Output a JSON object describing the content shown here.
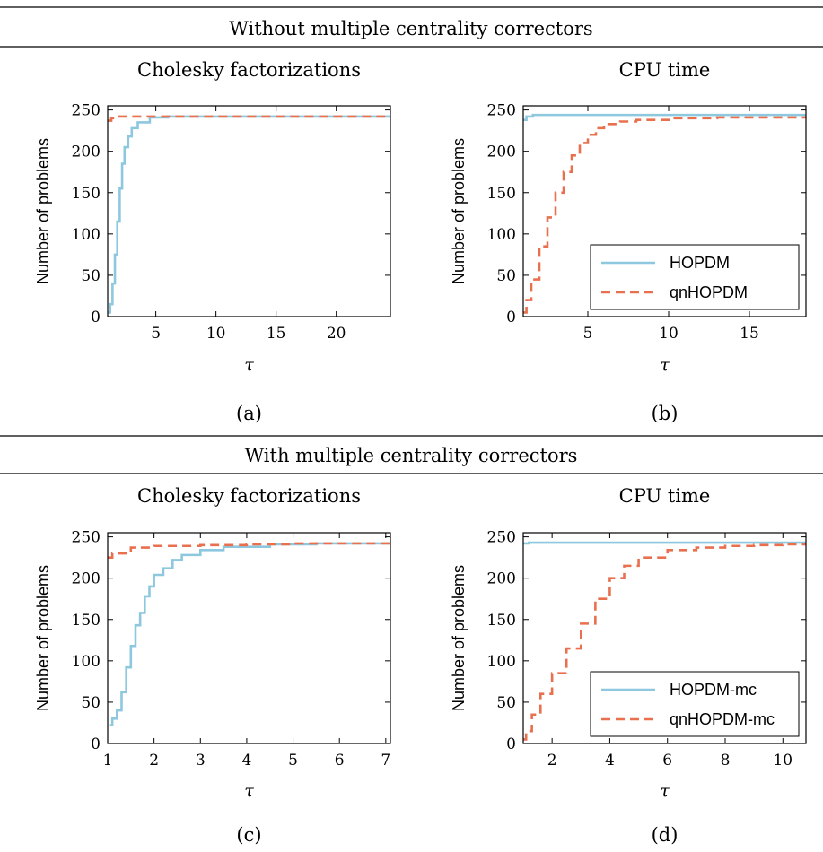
{
  "sections": [
    {
      "header": "Without multiple centrality correctors"
    },
    {
      "header": "With multiple centrality correctors"
    }
  ],
  "chart_data": [
    {
      "panel": "(a)",
      "type": "line",
      "title": "Cholesky factorizations",
      "xlabel": "τ",
      "ylabel": "Number of problems",
      "xlim": [
        1,
        24.5
      ],
      "ylim": [
        0,
        255
      ],
      "xticks": [
        5,
        10,
        15,
        20
      ],
      "xtick_labels": [
        "5",
        "10",
        "15",
        "20"
      ],
      "yticks": [
        0,
        50,
        100,
        150,
        200,
        250
      ],
      "ytick_labels": [
        "0",
        "50",
        "100",
        "150",
        "200",
        "250"
      ],
      "grid": false,
      "legend": null,
      "series": [
        {
          "name": "HOPDM",
          "color": "#8ec8df",
          "dash": "solid",
          "points": [
            [
              1,
              5
            ],
            [
              1.2,
              15
            ],
            [
              1.4,
              40
            ],
            [
              1.6,
              75
            ],
            [
              1.8,
              115
            ],
            [
              2.0,
              155
            ],
            [
              2.2,
              185
            ],
            [
              2.4,
              205
            ],
            [
              2.7,
              218
            ],
            [
              3.0,
              228
            ],
            [
              3.5,
              235
            ],
            [
              4.5,
              241
            ],
            [
              6,
              242
            ],
            [
              24.5,
              243
            ]
          ]
        },
        {
          "name": "qnHOPDM",
          "color": "#e8704f",
          "dash": "dashed",
          "points": [
            [
              1,
              237
            ],
            [
              1.3,
              240
            ],
            [
              1.8,
              242
            ],
            [
              24.5,
              242
            ]
          ]
        }
      ]
    },
    {
      "panel": "(b)",
      "type": "line",
      "title": "CPU time",
      "xlabel": "τ",
      "ylabel": "Number of problems",
      "xlim": [
        1,
        18.5
      ],
      "ylim": [
        0,
        255
      ],
      "xticks": [
        5,
        10,
        15
      ],
      "xtick_labels": [
        "5",
        "10",
        "15"
      ],
      "yticks": [
        0,
        50,
        100,
        150,
        200,
        250
      ],
      "ytick_labels": [
        "0",
        "50",
        "100",
        "150",
        "200",
        "250"
      ],
      "grid": false,
      "legend": "lower right",
      "series": [
        {
          "name": "HOPDM",
          "color": "#8ec8df",
          "dash": "solid",
          "points": [
            [
              1,
              238
            ],
            [
              1.2,
              242
            ],
            [
              1.6,
              244
            ],
            [
              18.5,
              244
            ]
          ]
        },
        {
          "name": "qnHOPDM",
          "color": "#e8704f",
          "dash": "dashed",
          "points": [
            [
              1,
              5
            ],
            [
              1.2,
              20
            ],
            [
              1.5,
              45
            ],
            [
              2,
              85
            ],
            [
              2.5,
              120
            ],
            [
              3,
              150
            ],
            [
              3.5,
              175
            ],
            [
              4,
              195
            ],
            [
              4.5,
              210
            ],
            [
              5,
              220
            ],
            [
              5.5,
              228
            ],
            [
              6,
              233
            ],
            [
              7,
              236
            ],
            [
              8,
              238
            ],
            [
              10,
              240
            ],
            [
              13,
              241
            ],
            [
              18.5,
              242
            ]
          ]
        }
      ]
    },
    {
      "panel": "(c)",
      "type": "line",
      "title": "Cholesky factorizations",
      "xlabel": "τ",
      "ylabel": "Number of problems",
      "xlim": [
        1,
        7.1
      ],
      "ylim": [
        0,
        255
      ],
      "xticks": [
        1,
        2,
        3,
        4,
        5,
        6,
        7
      ],
      "xtick_labels": [
        "1",
        "2",
        "3",
        "4",
        "5",
        "6",
        "7"
      ],
      "yticks": [
        0,
        50,
        100,
        150,
        200,
        250
      ],
      "ytick_labels": [
        "0",
        "50",
        "100",
        "150",
        "200",
        "250"
      ],
      "grid": false,
      "legend": null,
      "series": [
        {
          "name": "HOPDM",
          "color": "#8ec8df",
          "dash": "solid",
          "points": [
            [
              1.05,
              22
            ],
            [
              1.1,
              30
            ],
            [
              1.2,
              40
            ],
            [
              1.3,
              62
            ],
            [
              1.4,
              92
            ],
            [
              1.5,
              118
            ],
            [
              1.6,
              143
            ],
            [
              1.7,
              158
            ],
            [
              1.8,
              178
            ],
            [
              1.9,
              190
            ],
            [
              2.0,
              204
            ],
            [
              2.2,
              212
            ],
            [
              2.4,
              222
            ],
            [
              2.6,
              228
            ],
            [
              3.0,
              234
            ],
            [
              3.5,
              238
            ],
            [
              4.5,
              241
            ],
            [
              5.5,
              242
            ],
            [
              7.1,
              242
            ]
          ]
        },
        {
          "name": "qnHOPDM",
          "color": "#e8704f",
          "dash": "dashed",
          "points": [
            [
              1,
              225
            ],
            [
              1.1,
              230
            ],
            [
              1.5,
              237
            ],
            [
              2,
              239
            ],
            [
              3,
              240
            ],
            [
              4,
              241
            ],
            [
              5,
              242
            ],
            [
              7.1,
              242
            ]
          ]
        }
      ]
    },
    {
      "panel": "(d)",
      "type": "line",
      "title": "CPU time",
      "xlabel": "τ",
      "ylabel": "Number of problems",
      "xlim": [
        1,
        10.8
      ],
      "ylim": [
        0,
        255
      ],
      "xticks": [
        2,
        4,
        6,
        8,
        10
      ],
      "xtick_labels": [
        "2",
        "4",
        "6",
        "8",
        "10"
      ],
      "yticks": [
        0,
        50,
        100,
        150,
        200,
        250
      ],
      "ytick_labels": [
        "0",
        "50",
        "100",
        "150",
        "200",
        "250"
      ],
      "grid": false,
      "legend": "lower right",
      "series": [
        {
          "name": "HOPDM-mc",
          "color": "#8ec8df",
          "dash": "solid",
          "points": [
            [
              1,
              242
            ],
            [
              1.2,
              243
            ],
            [
              10.8,
              243
            ]
          ]
        },
        {
          "name": "qnHOPDM-mc",
          "color": "#e8704f",
          "dash": "dashed",
          "points": [
            [
              1,
              5
            ],
            [
              1.1,
              15
            ],
            [
              1.3,
              35
            ],
            [
              1.6,
              60
            ],
            [
              2,
              85
            ],
            [
              2.5,
              115
            ],
            [
              3,
              145
            ],
            [
              3.5,
              175
            ],
            [
              4,
              200
            ],
            [
              4.5,
              215
            ],
            [
              5,
              225
            ],
            [
              6,
              234
            ],
            [
              7,
              237
            ],
            [
              8,
              239
            ],
            [
              9,
              240
            ],
            [
              10,
              241
            ],
            [
              10.8,
              242
            ]
          ]
        }
      ]
    }
  ]
}
